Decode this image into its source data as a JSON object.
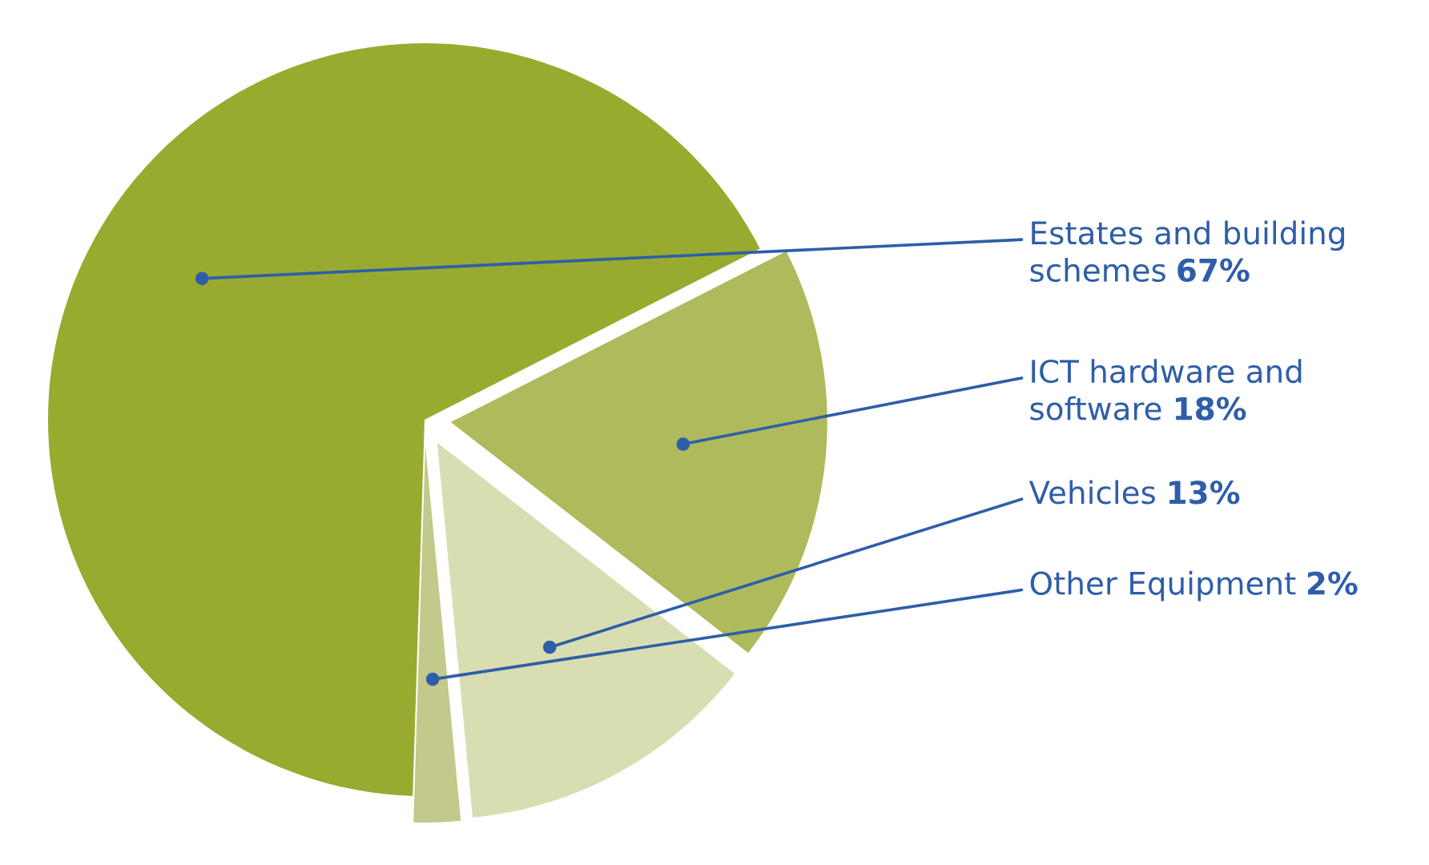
{
  "chart_data": {
    "type": "pie",
    "categories": [
      "Estates and building\nschemes",
      "ICT hardware and\nsoftware",
      "Vehicles",
      "Other Equipment"
    ],
    "values": [
      67,
      18,
      13,
      2
    ],
    "colors": [
      "#98ab2f",
      "#aeba5b",
      "#d9deb2",
      "#c2c98a"
    ],
    "value_labels": [
      "67%",
      "18%",
      "13%",
      "2%"
    ]
  }
}
